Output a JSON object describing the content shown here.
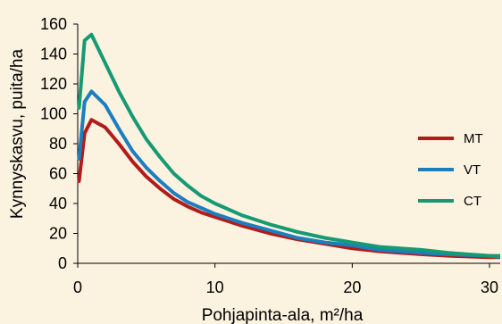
{
  "chart_data": {
    "type": "line",
    "title": "",
    "xlabel": "Pohjapinta-ala, m²/ha",
    "ylabel": "Kynnyskasvu, puita/ha",
    "xlim": [
      0,
      30
    ],
    "ylim": [
      0,
      160
    ],
    "xticks": [
      0,
      10,
      20,
      30
    ],
    "yticks": [
      0,
      20,
      40,
      60,
      80,
      100,
      120,
      140,
      160
    ],
    "grid": false,
    "legend_position": "right",
    "x": [
      0.1,
      0.5,
      1,
      2,
      3,
      4,
      5,
      6,
      7,
      8,
      9,
      10,
      12,
      14,
      16,
      18,
      20,
      22,
      25,
      27,
      30,
      31
    ],
    "series": [
      {
        "name": "MT",
        "color": "#b31b1b",
        "values": [
          55,
          87,
          96,
          91,
          80,
          68,
          58,
          50,
          43,
          38,
          34,
          31,
          25,
          20,
          16,
          13,
          10,
          8,
          6,
          5,
          4,
          4
        ]
      },
      {
        "name": "VT",
        "color": "#1b7fbf",
        "values": [
          70,
          108,
          115,
          106,
          90,
          75,
          64,
          55,
          47,
          41,
          37,
          33,
          27,
          22,
          17,
          14,
          12,
          9,
          7,
          6,
          5,
          4
        ]
      },
      {
        "name": "CT",
        "color": "#159a73",
        "values": [
          104,
          149,
          153,
          134,
          115,
          98,
          83,
          71,
          60,
          52,
          45,
          40,
          32,
          26,
          21,
          17,
          14,
          11,
          9,
          7,
          5,
          5
        ]
      }
    ]
  }
}
